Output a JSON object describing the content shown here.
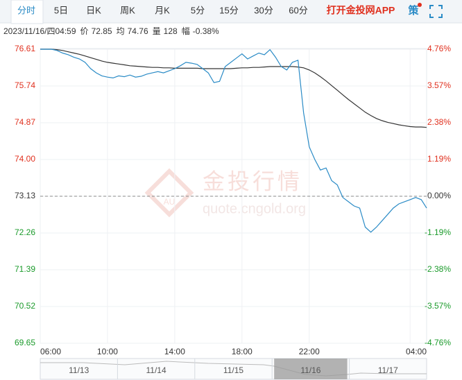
{
  "tabs": [
    "分时",
    "5日",
    "日K",
    "周K",
    "月K",
    "5分",
    "15分",
    "30分",
    "60分"
  ],
  "active_tab": 0,
  "app_link": "打开金投网APP",
  "strategy_button": "策",
  "info": {
    "datetime": "2023/11/16/四04:59",
    "price_label": "价",
    "price": 72.85,
    "avg_label": "均",
    "avg": 74.76,
    "volume_label": "量",
    "volume": 128,
    "amplitude_label": "幅",
    "change": "-0.38%"
  },
  "chart_data": {
    "type": "line",
    "watermark": {
      "title": "金投行情",
      "url": "quote.cngold.org"
    },
    "x": [
      "06:00",
      "06:20",
      "06:40",
      "07:00",
      "07:20",
      "07:40",
      "08:00",
      "08:20",
      "08:40",
      "09:00",
      "09:20",
      "09:40",
      "10:00",
      "10:20",
      "10:40",
      "11:00",
      "11:20",
      "11:40",
      "12:00",
      "12:20",
      "12:40",
      "13:00",
      "13:20",
      "13:40",
      "14:00",
      "14:20",
      "14:40",
      "15:00",
      "15:20",
      "15:40",
      "16:00",
      "16:20",
      "16:40",
      "17:00",
      "17:20",
      "17:40",
      "18:00",
      "18:20",
      "18:40",
      "19:00",
      "19:20",
      "19:40",
      "20:00",
      "20:20",
      "20:40",
      "21:00",
      "21:20",
      "21:40",
      "22:00",
      "22:20",
      "22:40",
      "23:00",
      "23:20",
      "23:40",
      "00:00",
      "00:20",
      "00:40",
      "01:00",
      "01:20",
      "01:40",
      "02:00",
      "02:20",
      "02:40",
      "03:00",
      "03:20",
      "03:40",
      "04:00",
      "04:20",
      "04:40",
      "04:59"
    ],
    "series": [
      {
        "name": "价",
        "color": "#2a8bc6",
        "values": [
          76.61,
          76.61,
          76.61,
          76.58,
          76.52,
          76.48,
          76.42,
          76.38,
          76.3,
          76.15,
          76.05,
          75.98,
          75.95,
          75.93,
          75.98,
          75.96,
          76.0,
          75.95,
          75.97,
          76.02,
          76.05,
          76.08,
          76.05,
          76.1,
          76.15,
          76.22,
          76.3,
          76.28,
          76.25,
          76.15,
          76.05,
          75.82,
          75.85,
          76.2,
          76.3,
          76.4,
          76.5,
          76.38,
          76.45,
          76.52,
          76.48,
          76.6,
          76.42,
          76.2,
          76.12,
          76.3,
          76.35,
          75.1,
          74.3,
          74.0,
          73.75,
          73.8,
          73.5,
          73.4,
          73.1,
          73.0,
          72.9,
          72.85,
          72.4,
          72.28,
          72.4,
          72.55,
          72.7,
          72.85,
          72.95,
          73.0,
          73.05,
          73.1,
          73.05,
          72.85
        ]
      },
      {
        "name": "均",
        "color": "#333333",
        "values": [
          76.61,
          76.61,
          76.61,
          76.6,
          76.58,
          76.55,
          76.52,
          76.49,
          76.45,
          76.41,
          76.37,
          76.33,
          76.3,
          76.28,
          76.26,
          76.24,
          76.22,
          76.21,
          76.2,
          76.19,
          76.18,
          76.18,
          76.17,
          76.17,
          76.16,
          76.16,
          76.16,
          76.16,
          76.16,
          76.15,
          76.15,
          76.15,
          76.15,
          76.15,
          76.15,
          76.16,
          76.17,
          76.17,
          76.18,
          76.18,
          76.19,
          76.2,
          76.2,
          76.2,
          76.2,
          76.2,
          76.19,
          76.17,
          76.12,
          76.05,
          75.96,
          75.86,
          75.75,
          75.64,
          75.53,
          75.42,
          75.32,
          75.22,
          75.12,
          75.04,
          74.97,
          74.92,
          74.88,
          74.85,
          74.82,
          74.8,
          74.78,
          74.77,
          74.77,
          74.76
        ]
      }
    ],
    "xlim": [
      "06:00",
      "04:59"
    ],
    "xticks": [
      "06:00",
      "10:00",
      "14:00",
      "18:00",
      "22:00",
      "04:00"
    ],
    "ylim": [
      69.65,
      76.61
    ],
    "yticks": [
      76.61,
      75.74,
      74.87,
      {
        "value": 74,
        "label": "74.00"
      },
      73.13,
      72.26,
      71.39,
      70.52,
      69.65
    ],
    "baseline": 73.13,
    "y2lim": [
      -4.76,
      4.76
    ],
    "y2ticks": [
      {
        "value": 4.76,
        "label": "4.76%"
      },
      {
        "value": 3.57,
        "label": "3.57%"
      },
      {
        "value": 2.38,
        "label": "2.38%"
      },
      {
        "value": 1.19,
        "label": "1.19%"
      },
      {
        "value": 0,
        "label": "0.00%"
      },
      {
        "value": -1.19,
        "label": "-1.19%"
      },
      {
        "value": -2.38,
        "label": "-2.38%"
      },
      {
        "value": -3.57,
        "label": "-3.57%"
      },
      {
        "value": -4.76,
        "label": "-4.76%"
      }
    ],
    "up_color": "#e0301e",
    "down_color": "#1a9a2a",
    "grid": true
  },
  "navigator": {
    "dates": [
      "11/13",
      "11/14",
      "11/15",
      "11/16",
      "11/17"
    ],
    "selected": 3
  }
}
